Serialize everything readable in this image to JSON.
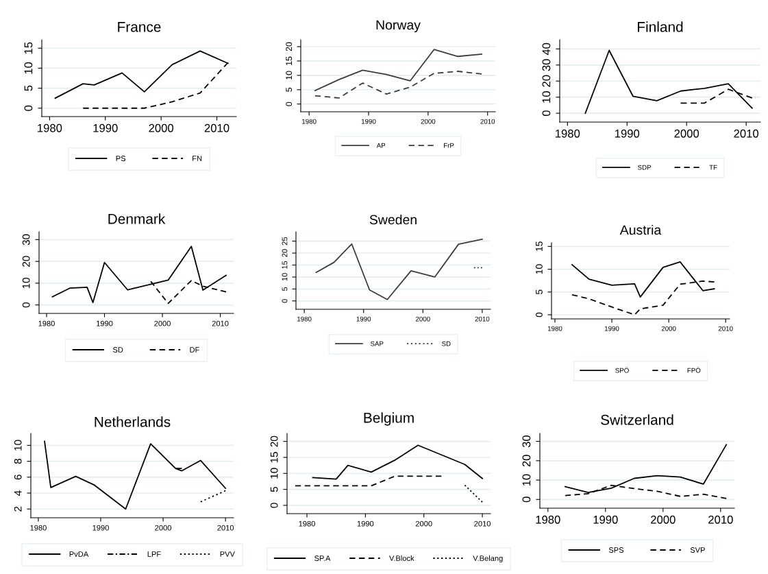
{
  "chart_data": [
    {
      "type": "line",
      "title": "France",
      "xlim": [
        1978.6,
        2013.5
      ],
      "ylim": [
        -2.1,
        17.1
      ],
      "xticks": [
        1980,
        1990,
        2000,
        2010
      ],
      "yticks": [
        0,
        5,
        10,
        15
      ],
      "grid": "y",
      "legend": "bottom",
      "series": [
        {
          "name": "PS",
          "color": "#000000",
          "line_style": "solid",
          "x": [
            1981,
            1986,
            1988,
            1993,
            1997,
            2002,
            2007,
            2012
          ],
          "values": [
            2.5,
            6.1,
            5.8,
            8.8,
            4.1,
            10.9,
            14.3,
            11.2
          ]
        },
        {
          "name": "FN",
          "color": "#000000",
          "line_style": "dashed",
          "x": [
            1986,
            1988,
            1993,
            1997,
            2002,
            2007,
            2012
          ],
          "values": [
            0,
            0,
            0,
            0,
            1.6,
            3.8,
            11.4
          ]
        }
      ]
    },
    {
      "type": "line",
      "title": "Norway",
      "xlim": [
        1978.6,
        2011.3
      ],
      "ylim": [
        -2.7,
        22.4
      ],
      "xticks": [
        1980,
        1990,
        2000,
        2010
      ],
      "yticks": [
        0,
        5,
        10,
        15,
        20
      ],
      "grid": "y",
      "legend": "bottom",
      "series": [
        {
          "name": "AP",
          "color": "#3c3c3c",
          "line_style": "solid",
          "x": [
            1981,
            1985,
            1989,
            1993,
            1997,
            2001,
            2005,
            2009
          ],
          "values": [
            4.7,
            8.5,
            11.8,
            10.3,
            8.1,
            19.0,
            16.6,
            17.4
          ]
        },
        {
          "name": "FrP",
          "color": "#3c3c3c",
          "line_style": "dashed",
          "x": [
            1981,
            1985,
            1989,
            1993,
            1997,
            2001,
            2005,
            2009
          ],
          "values": [
            2.9,
            2.1,
            7.3,
            3.5,
            5.9,
            10.7,
            11.4,
            10.5
          ]
        }
      ]
    },
    {
      "type": "line",
      "title": "Finland",
      "xlim": [
        1978.7,
        2012.4
      ],
      "ylim": [
        -5.5,
        45.7
      ],
      "xticks": [
        1980,
        1990,
        2000,
        2010
      ],
      "yticks": [
        0,
        10,
        20,
        30,
        40
      ],
      "grid": "y",
      "legend": "bottom",
      "series": [
        {
          "name": "SDP",
          "color": "#000000",
          "line_style": "solid",
          "x": [
            1983,
            1987,
            1991,
            1995,
            1999,
            2003,
            2007,
            2011
          ],
          "values": [
            0,
            39.1,
            10.6,
            7.8,
            13.8,
            15.5,
            18.3,
            3.1
          ]
        },
        {
          "name": "TF",
          "color": "#000000",
          "line_style": "dashed",
          "x": [
            1999,
            2003,
            2007,
            2011
          ],
          "values": [
            6.3,
            6.3,
            14.9,
            9.5
          ]
        }
      ]
    },
    {
      "type": "line",
      "title": "Denmark",
      "xlim": [
        1978.7,
        2012.3
      ],
      "ylim": [
        -3.9,
        33.6
      ],
      "xticks": [
        1980,
        1990,
        2000,
        2010
      ],
      "yticks": [
        0,
        10,
        20,
        30
      ],
      "grid": "y",
      "legend": "bottom",
      "series": [
        {
          "name": "SD",
          "color": "#000000",
          "line_style": "solid",
          "x": [
            1981,
            1984,
            1987,
            1988,
            1990,
            1994,
            2001,
            2005,
            2007,
            2011
          ],
          "values": [
            3.7,
            7.7,
            8.1,
            1.1,
            19.5,
            6.9,
            11.4,
            26.9,
            6.8,
            13.6
          ]
        },
        {
          "name": "DF",
          "color": "#000000",
          "line_style": "dashed",
          "x": [
            1998,
            2001,
            2005,
            2007,
            2011
          ],
          "values": [
            10.8,
            0.7,
            11.2,
            8.6,
            6.0
          ]
        }
      ]
    },
    {
      "type": "line",
      "title": "Sweden",
      "xlim": [
        1978.6,
        2011.4
      ],
      "ylim": [
        -3.5,
        28.9
      ],
      "xticks": [
        1980,
        1990,
        2000,
        2010
      ],
      "yticks": [
        0,
        5,
        10,
        15,
        20,
        25
      ],
      "grid": "y",
      "legend": "bottom",
      "series": [
        {
          "name": "SAP",
          "color": "#3c3c3c",
          "line_style": "solid",
          "x": [
            1982,
            1985,
            1988,
            1991,
            1994,
            1998,
            2002,
            2006,
            2010
          ],
          "values": [
            11.9,
            16.1,
            23.8,
            4.6,
            0.6,
            12.6,
            10.0,
            23.7,
            25.8
          ]
        },
        {
          "name": "SD",
          "color": "#3c3c3c",
          "line_style": "dotted",
          "x": [
            2008.6,
            2010
          ],
          "values": [
            13.9,
            13.9
          ]
        }
      ]
    },
    {
      "type": "line",
      "title": "Austria",
      "xlim": [
        1979.4,
        2010.7
      ],
      "ylim": [
        -0.9,
        15.8
      ],
      "xticks": [
        1980,
        1990,
        2000,
        2010
      ],
      "yticks": [
        0,
        5,
        10,
        15
      ],
      "grid": "y",
      "legend": "bottom",
      "series": [
        {
          "name": "SPÖ",
          "color": "#000000",
          "line_style": "solid",
          "x": [
            1983,
            1986,
            1990,
            1994,
            1995,
            1999,
            2002,
            2006,
            2008
          ],
          "values": [
            11.0,
            7.8,
            6.5,
            6.8,
            3.9,
            10.4,
            11.6,
            5.3,
            5.7
          ]
        },
        {
          "name": "FPÖ",
          "color": "#000000",
          "line_style": "dashed",
          "x": [
            1983,
            1986,
            1990,
            1994,
            1995,
            1999,
            2002,
            2006,
            2008
          ],
          "values": [
            4.4,
            3.5,
            1.7,
            0.0,
            1.3,
            2.1,
            6.7,
            7.4,
            7.2
          ]
        }
      ]
    },
    {
      "type": "line",
      "title": "Netherlands",
      "xlim": [
        1978.8,
        2011.3
      ],
      "ylim": [
        0.9,
        11.5
      ],
      "xticks": [
        1980,
        1990,
        2000,
        2010
      ],
      "yticks": [
        2,
        4,
        6,
        8,
        10
      ],
      "grid": "y",
      "legend": "bottom",
      "series": [
        {
          "name": "PvDA",
          "color": "#000000",
          "line_style": "solid",
          "x": [
            1981,
            1982,
            1986,
            1989,
            1994,
            1998,
            2002,
            2003,
            2006,
            2010
          ],
          "values": [
            10.5,
            4.7,
            6.1,
            5.0,
            2.0,
            10.2,
            7.1,
            6.8,
            8.1,
            4.6
          ]
        },
        {
          "name": "LPF",
          "color": "#000000",
          "line_style": "dashdot",
          "x": [
            2002,
            2003
          ],
          "values": [
            7.1,
            7.1
          ]
        },
        {
          "name": "PVV",
          "color": "#000000",
          "line_style": "dotted",
          "x": [
            2006,
            2010
          ],
          "values": [
            2.9,
            4.3
          ]
        }
      ]
    },
    {
      "type": "line",
      "title": "Belgium",
      "xlim": [
        1976.6,
        2011.4
      ],
      "ylim": [
        -2.6,
        22.5
      ],
      "xticks": [
        1980,
        1990,
        2000,
        2010
      ],
      "yticks": [
        0,
        5,
        10,
        15,
        20
      ],
      "grid": "y",
      "legend": "bottom",
      "series": [
        {
          "name": "SP.A",
          "color": "#000000",
          "line_style": "solid",
          "x": [
            1981,
            1985,
            1987,
            1991,
            1995,
            1999,
            2007,
            2010
          ],
          "values": [
            8.7,
            8.2,
            12.5,
            10.4,
            14.1,
            18.8,
            12.8,
            8.4
          ]
        },
        {
          "name": "V.Block",
          "color": "#000000",
          "line_style": "dashed",
          "x": [
            1978,
            1991,
            1995,
            2003
          ],
          "values": [
            6.1,
            6.1,
            9.1,
            9.1
          ]
        },
        {
          "name": "V.Belang",
          "color": "#000000",
          "line_style": "dotted",
          "x": [
            2007,
            2010
          ],
          "values": [
            6.3,
            1.0
          ]
        }
      ]
    },
    {
      "type": "line",
      "title": "Switzerland",
      "xlim": [
        1978.6,
        2012.4
      ],
      "ylim": [
        -4.5,
        34.1
      ],
      "xticks": [
        1980,
        1990,
        2000,
        2010
      ],
      "yticks": [
        0,
        10,
        20,
        30
      ],
      "grid": "y",
      "legend": "bottom",
      "series": [
        {
          "name": "SPS",
          "color": "#000000",
          "line_style": "solid",
          "x": [
            1983,
            1987,
            1991,
            1995,
            1999,
            2003,
            2007,
            2011
          ],
          "values": [
            6.6,
            3.6,
            5.8,
            10.9,
            12.3,
            11.6,
            7.9,
            28.3
          ]
        },
        {
          "name": "SVP",
          "color": "#000000",
          "line_style": "dashed",
          "x": [
            1983,
            1987,
            1991,
            1995,
            1999,
            2003,
            2007,
            2011
          ],
          "values": [
            2.0,
            3.0,
            7.3,
            5.6,
            4.2,
            1.6,
            2.7,
            0.5
          ]
        }
      ]
    }
  ]
}
